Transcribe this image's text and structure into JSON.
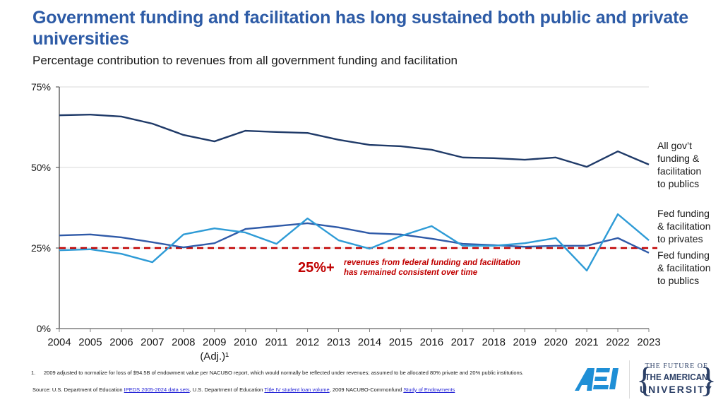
{
  "header": {
    "title": "Government funding and facilitation has long sustained both public and private universities",
    "subtitle": "Percentage contribution to revenues from all government funding and facilitation"
  },
  "chart_data": {
    "type": "line",
    "title": "Government funding and facilitation has long sustained both public and private universities",
    "subtitle": "Percentage contribution to revenues from all government funding and facilitation",
    "xlabel": "",
    "ylabel": "",
    "x": [
      "2004",
      "2005",
      "2006",
      "2007",
      "2008",
      "2009",
      "2010",
      "2011",
      "2012",
      "2013",
      "2014",
      "2015",
      "2016",
      "2017",
      "2018",
      "2019",
      "2020",
      "2021",
      "2022",
      "2023"
    ],
    "x_sublabels": {
      "2009": "(Adj.)¹"
    },
    "ylim": [
      0,
      75
    ],
    "yticks": [
      0,
      25,
      50,
      75
    ],
    "ytick_labels": [
      "0%",
      "25%",
      "50%",
      "75%"
    ],
    "grid": true,
    "legend_placement": "right (direct labels)",
    "series": [
      {
        "name": "All gov't funding & facilitation to publics",
        "label_lines": [
          "All gov’t",
          "funding &",
          "facilitation",
          "to publics"
        ],
        "color": "#1f3a68",
        "values": [
          66.2,
          66.4,
          65.8,
          63.6,
          60.1,
          58.1,
          61.4,
          61.0,
          60.7,
          58.6,
          57.0,
          56.6,
          55.5,
          53.1,
          52.9,
          52.4,
          53.1,
          50.2,
          55.0,
          50.9
        ]
      },
      {
        "name": "Fed funding & facilitation to privates",
        "label_lines": [
          "Fed funding",
          "& facilitation",
          "to privates"
        ],
        "color": "#2e9bd6",
        "values": [
          24.3,
          24.6,
          23.2,
          20.6,
          29.2,
          31.1,
          29.8,
          26.3,
          34.2,
          27.4,
          24.8,
          28.7,
          31.8,
          25.7,
          25.7,
          26.5,
          28.1,
          18.0,
          35.5,
          27.4
        ]
      },
      {
        "name": "Fed funding & facilitation to publics",
        "label_lines": [
          "Fed funding",
          "& facilitation",
          "to publics"
        ],
        "color": "#2f5aa8",
        "values": [
          28.9,
          29.2,
          28.3,
          26.8,
          25.2,
          26.5,
          30.9,
          31.8,
          32.7,
          31.4,
          29.6,
          29.2,
          27.9,
          26.3,
          25.9,
          25.4,
          25.7,
          25.7,
          28.1,
          23.5
        ]
      }
    ],
    "reference_line": {
      "value": 25,
      "style": "dashed",
      "color": "#c00000"
    },
    "annotation": {
      "big": "25%+",
      "small_lines": [
        "revenues from federal funding  and facilitation",
        "has remained consistent over time"
      ]
    }
  },
  "footnote": {
    "number": "1.",
    "text": "2009 adjusted to normalize for loss of $94.5B of endowment value per NACUBO  report, which would normally be reflected under revenues; assumed to be allocated 80% private and 20% public institutions."
  },
  "source": {
    "prefix": "Source: U.S. Department of Education ",
    "link1": "IPEDS  2005-2024 data sets",
    "mid1": ", U.S. Department of Education ",
    "link2": "Title IV student loan  volume",
    "mid2": ", 2009 NACUBO-Commonfund  ",
    "link3": "Study of Endowments"
  },
  "logos": {
    "aei": "AEI",
    "fau_line1": "THE FUTURE OF",
    "fau_line2": "THE AMERICAN",
    "fau_line3": "UNIVERSITY",
    "aei_color": "#1f8fd6",
    "fau_color": "#2b3f66"
  }
}
